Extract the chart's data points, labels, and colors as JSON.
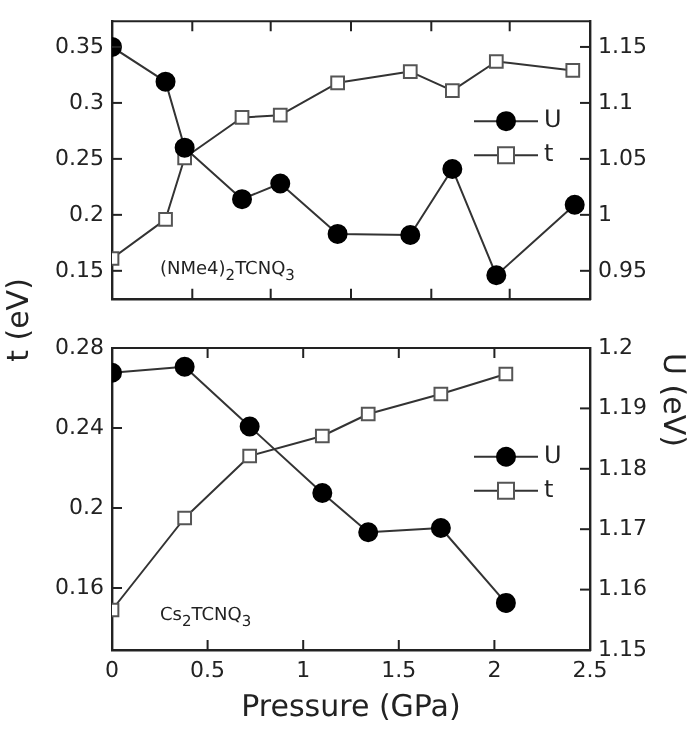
{
  "chart_data": [
    {
      "type": "line",
      "ylabel": "t (eV)",
      "annotations": [
        "(NMe4)$_{2}$TCNQ$_{3}$"
      ],
      "xlim": [
        0,
        2.5
      ],
      "xticks": [
        {
          "value": 0,
          "label": null
        },
        {
          "value": 0.42,
          "label": null
        },
        {
          "value": 0.83,
          "label": null
        },
        {
          "value": 1.25,
          "label": null
        },
        {
          "value": 1.67,
          "label": null
        },
        {
          "value": 2.08,
          "label": null
        },
        {
          "value": 2.5,
          "label": null
        }
      ],
      "ylim": [
        0.125,
        0.373
      ],
      "yticks": [
        0.15,
        0.2,
        0.25,
        0.3,
        0.35
      ],
      "y2lim": [
        0.925,
        1.173
      ],
      "y2ticks": [
        0.95,
        1.0,
        1.05,
        1.1,
        1.15
      ],
      "tick_labels": "y",
      "grid": false,
      "legend": "right",
      "line_style": "solid",
      "series": [
        {
          "name": "U",
          "type": "line",
          "axis": "y2",
          "marker": "circle",
          "color": "#000000",
          "x": [
            0,
            0.28,
            0.38,
            0.68,
            0.88,
            1.18,
            1.56,
            1.78,
            2.01,
            2.42
          ],
          "values": [
            1.15,
            1.119,
            1.06,
            1.014,
            1.028,
            0.983,
            0.982,
            1.041,
            0.946,
            1.009
          ]
        },
        {
          "name": "t",
          "type": "line",
          "axis": "y",
          "marker": "square",
          "color": "#555555",
          "x": [
            0,
            0.28,
            0.38,
            0.68,
            0.88,
            1.18,
            1.56,
            1.78,
            2.01,
            2.41
          ],
          "values": [
            0.161,
            0.196,
            0.251,
            0.287,
            0.289,
            0.318,
            0.328,
            0.311,
            0.337,
            0.329
          ]
        }
      ]
    },
    {
      "type": "line",
      "xlabel": "Pressure (GPa)",
      "y2label": "U (eV)",
      "annotations": [
        "Cs$_{2}$TCNQ$_{3}$"
      ],
      "xlim": [
        0,
        2.5
      ],
      "xticks": [
        0,
        0.5,
        1,
        1.5,
        2,
        2.5
      ],
      "ylim": [
        0.129,
        0.28
      ],
      "yticks": [
        0.16,
        0.2,
        0.24,
        0.28
      ],
      "y2lim": [
        1.15,
        1.2
      ],
      "y2ticks": [
        1.15,
        1.16,
        1.17,
        1.18,
        1.19,
        1.2
      ],
      "grid": false,
      "legend": "right",
      "line_style": "solid",
      "series": [
        {
          "name": "U",
          "type": "line",
          "axis": "y2",
          "marker": "circle",
          "color": "#000000",
          "x": [
            0,
            0.38,
            0.72,
            1.1,
            1.34,
            1.72,
            2.06
          ],
          "values": [
            1.1959,
            1.1969,
            1.187,
            1.176,
            1.1695,
            1.1702,
            1.1578
          ]
        },
        {
          "name": "t",
          "type": "line",
          "axis": "y",
          "marker": "square",
          "color": "#555555",
          "x": [
            0,
            0.38,
            0.72,
            1.1,
            1.34,
            1.72,
            2.06
          ],
          "values": [
            0.149,
            0.195,
            0.226,
            0.236,
            0.247,
            0.257,
            0.267
          ]
        }
      ]
    }
  ]
}
